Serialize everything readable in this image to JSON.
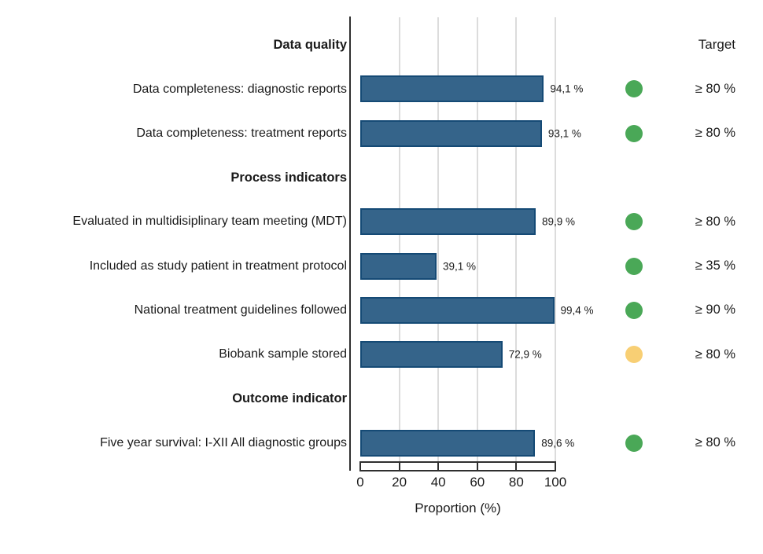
{
  "chart_data": {
    "type": "bar",
    "orientation": "horizontal",
    "xlabel": "Proportion (%)",
    "xlim": [
      0,
      100
    ],
    "x_ticks": [
      0,
      20,
      40,
      60,
      80,
      100
    ],
    "grid": "vertical-light",
    "target_header": "Target",
    "rows": [
      {
        "type": "header",
        "label": "Data quality"
      },
      {
        "type": "bar",
        "label": "Data completeness: diagnostic reports",
        "value": 94.1,
        "value_label": "94,1 %",
        "status": "green",
        "target": "≥ 80 %"
      },
      {
        "type": "bar",
        "label": "Data completeness: treatment reports",
        "value": 93.1,
        "value_label": "93,1 %",
        "status": "green",
        "target": "≥ 80 %"
      },
      {
        "type": "header",
        "label": "Process indicators"
      },
      {
        "type": "bar",
        "label": "Evaluated in multidisiplinary team meeting (MDT)",
        "value": 89.9,
        "value_label": "89,9 %",
        "status": "green",
        "target": "≥ 80 %"
      },
      {
        "type": "bar",
        "label": "Included as study patient in treatment protocol",
        "value": 39.1,
        "value_label": "39,1 %",
        "status": "green",
        "target": "≥ 35 %"
      },
      {
        "type": "bar",
        "label": "National treatment guidelines followed",
        "value": 99.4,
        "value_label": "99,4 %",
        "status": "green",
        "target": "≥ 90 %"
      },
      {
        "type": "bar",
        "label": "Biobank sample stored",
        "value": 72.9,
        "value_label": "72,9 %",
        "status": "yellow",
        "target": "≥ 80 %"
      },
      {
        "type": "header",
        "label": "Outcome indicator"
      },
      {
        "type": "bar",
        "label": "Five year survival: I-XII All diagnostic groups",
        "value": 89.6,
        "value_label": "89,6 %",
        "status": "green",
        "target": "≥ 80 %"
      }
    ],
    "colors": {
      "bar_fill": "#35648a",
      "bar_border": "#154a75",
      "status_green": "#4aa857",
      "status_yellow": "#f8cf74",
      "gridline": "#dcdcdc",
      "axis": "#2f2f2f"
    }
  }
}
